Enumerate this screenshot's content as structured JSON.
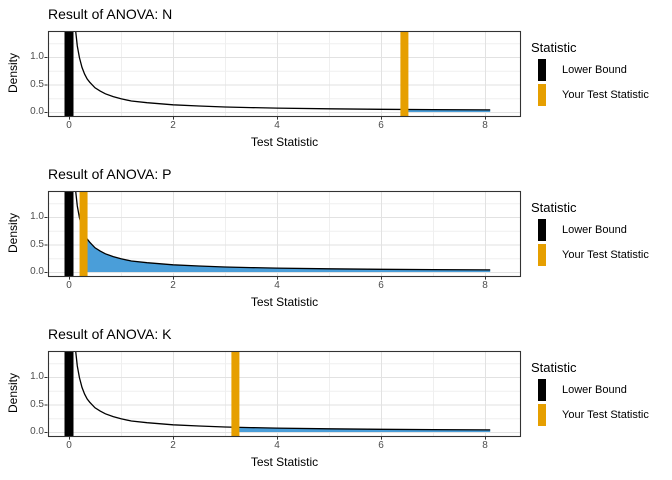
{
  "chart_data": [
    {
      "type": "area",
      "title": "Result of ANOVA: N",
      "xlabel": "Test Statistic",
      "ylabel": "Density",
      "x_ticks": [
        0,
        2,
        4,
        6,
        8
      ],
      "x_tick_labels": [
        "0",
        "2",
        "4",
        "6",
        "8"
      ],
      "x_minor_ticks": [
        1,
        3,
        5,
        7
      ],
      "y_ticks": [
        0,
        0.5,
        1.0
      ],
      "y_tick_labels": [
        "0.0",
        "0.5",
        "1.0"
      ],
      "y_minor_ticks": [
        0.25,
        0.75,
        1.25
      ],
      "xlim": [
        -0.4,
        8.7
      ],
      "ylim": [
        -0.07,
        1.47
      ],
      "grid": true,
      "legend_position": "right",
      "lower_bound": 0,
      "test_statistic": 6.45,
      "shaded_region": {
        "from": 6.45,
        "to": 8.1
      },
      "curve": {
        "x": [
          0.04,
          0.07,
          0.1,
          0.13,
          0.16,
          0.2,
          0.25,
          0.3,
          0.35,
          0.4,
          0.5,
          0.6,
          0.7,
          0.85,
          1,
          1.2,
          1.5,
          2,
          2.5,
          3,
          3.5,
          4,
          5,
          6,
          7,
          8.1
        ],
        "y": [
          1.7,
          1.7,
          1.7,
          1.45,
          1.2,
          0.99,
          0.81,
          0.69,
          0.6,
          0.54,
          0.44,
          0.38,
          0.33,
          0.28,
          0.24,
          0.2,
          0.17,
          0.13,
          0.11,
          0.091,
          0.08,
          0.071,
          0.058,
          0.05,
          0.043,
          0.038
        ]
      },
      "colors": {
        "curve": "#000000",
        "lower_bound": "#000000",
        "test_statistic": "#E69F00",
        "shade": "#4A9ED9"
      },
      "legend": {
        "title": "Statistic",
        "items": [
          {
            "label": "Lower Bound",
            "color": "#000000"
          },
          {
            "label": "Your Test Statistic",
            "color": "#E69F00"
          }
        ]
      }
    },
    {
      "type": "area",
      "title": "Result of ANOVA: P",
      "xlabel": "Test Statistic",
      "ylabel": "Density",
      "x_ticks": [
        0,
        2,
        4,
        6,
        8
      ],
      "x_tick_labels": [
        "0",
        "2",
        "4",
        "6",
        "8"
      ],
      "x_minor_ticks": [
        1,
        3,
        5,
        7
      ],
      "y_ticks": [
        0,
        0.5,
        1.0
      ],
      "y_tick_labels": [
        "0.0",
        "0.5",
        "1.0"
      ],
      "y_minor_ticks": [
        0.25,
        0.75,
        1.25
      ],
      "xlim": [
        -0.4,
        8.7
      ],
      "ylim": [
        -0.07,
        1.47
      ],
      "grid": true,
      "legend_position": "right",
      "lower_bound": 0,
      "test_statistic": 0.28,
      "shaded_region": {
        "from": 0.28,
        "to": 8.1
      },
      "curve": {
        "x": [
          0.04,
          0.07,
          0.1,
          0.13,
          0.16,
          0.2,
          0.25,
          0.3,
          0.35,
          0.4,
          0.5,
          0.6,
          0.7,
          0.85,
          1,
          1.2,
          1.5,
          2,
          2.5,
          3,
          3.5,
          4,
          5,
          6,
          7,
          8.1
        ],
        "y": [
          1.7,
          1.7,
          1.7,
          1.45,
          1.2,
          0.99,
          0.81,
          0.69,
          0.6,
          0.54,
          0.44,
          0.38,
          0.33,
          0.28,
          0.24,
          0.2,
          0.17,
          0.13,
          0.11,
          0.091,
          0.08,
          0.071,
          0.058,
          0.05,
          0.043,
          0.038
        ]
      },
      "colors": {
        "curve": "#000000",
        "lower_bound": "#000000",
        "test_statistic": "#E69F00",
        "shade": "#4A9ED9"
      },
      "legend": {
        "title": "Statistic",
        "items": [
          {
            "label": "Lower Bound",
            "color": "#000000"
          },
          {
            "label": "Your Test Statistic",
            "color": "#E69F00"
          }
        ]
      }
    },
    {
      "type": "area",
      "title": "Result of ANOVA: K",
      "xlabel": "Test Statistic",
      "ylabel": "Density",
      "x_ticks": [
        0,
        2,
        4,
        6,
        8
      ],
      "x_tick_labels": [
        "0",
        "2",
        "4",
        "6",
        "8"
      ],
      "x_minor_ticks": [
        1,
        3,
        5,
        7
      ],
      "y_ticks": [
        0,
        0.5,
        1.0
      ],
      "y_tick_labels": [
        "0.0",
        "0.5",
        "1.0"
      ],
      "y_minor_ticks": [
        0.25,
        0.75,
        1.25
      ],
      "xlim": [
        -0.4,
        8.7
      ],
      "ylim": [
        -0.07,
        1.47
      ],
      "grid": true,
      "legend_position": "right",
      "lower_bound": 0,
      "test_statistic": 3.2,
      "shaded_region": {
        "from": 3.2,
        "to": 8.1
      },
      "curve": {
        "x": [
          0.04,
          0.07,
          0.1,
          0.13,
          0.16,
          0.2,
          0.25,
          0.3,
          0.35,
          0.4,
          0.5,
          0.6,
          0.7,
          0.85,
          1,
          1.2,
          1.5,
          2,
          2.5,
          3,
          3.5,
          4,
          5,
          6,
          7,
          8.1
        ],
        "y": [
          1.7,
          1.7,
          1.7,
          1.45,
          1.2,
          0.99,
          0.81,
          0.69,
          0.6,
          0.54,
          0.44,
          0.38,
          0.33,
          0.28,
          0.24,
          0.2,
          0.17,
          0.13,
          0.11,
          0.091,
          0.08,
          0.071,
          0.058,
          0.05,
          0.043,
          0.038
        ]
      },
      "colors": {
        "curve": "#000000",
        "lower_bound": "#000000",
        "test_statistic": "#E69F00",
        "shade": "#4A9ED9"
      },
      "legend": {
        "title": "Statistic",
        "items": [
          {
            "label": "Lower Bound",
            "color": "#000000"
          },
          {
            "label": "Your Test Statistic",
            "color": "#E69F00"
          }
        ]
      }
    }
  ]
}
